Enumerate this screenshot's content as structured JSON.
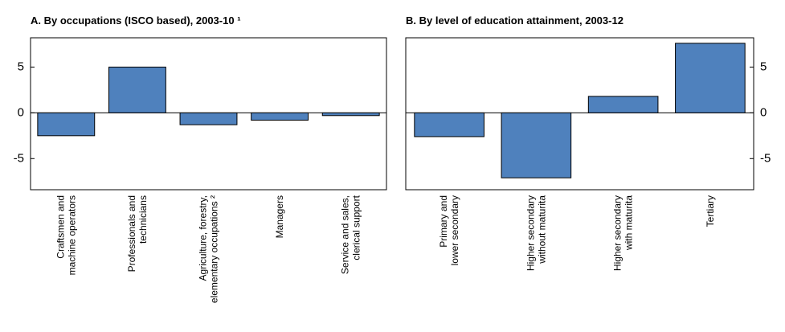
{
  "chart_data": [
    {
      "type": "bar",
      "title": "A. By occupations (ISCO based), 2003-10 ¹",
      "categories": [
        [
          "Craftsmen and",
          "machine operators"
        ],
        [
          "Professionals and",
          "technicians"
        ],
        [
          "Agriculture, forestry,",
          "elementary occupations ²"
        ],
        [
          "Managers"
        ],
        [
          "Service and sales,",
          "clerical support"
        ]
      ],
      "values": [
        -2.5,
        5.0,
        -1.3,
        -0.8,
        -0.3
      ],
      "color": "#4f81bd",
      "ylim": [
        -8.4,
        8.2
      ],
      "yticks": [
        -5,
        0,
        5
      ],
      "yaxis_side": "left"
    },
    {
      "type": "bar",
      "title": "B. By level of education attainment, 2003-12",
      "categories": [
        [
          "Primary and",
          "lower secondary"
        ],
        [
          "Higher secondary",
          "without maturita"
        ],
        [
          "Higher secondary",
          "with maturita"
        ],
        [
          "Tertiary"
        ]
      ],
      "values": [
        -2.6,
        -7.1,
        1.8,
        7.6
      ],
      "color": "#4f81bd",
      "ylim": [
        -8.4,
        8.2
      ],
      "yticks": [
        -5,
        0,
        5
      ],
      "yaxis_side": "right"
    }
  ]
}
